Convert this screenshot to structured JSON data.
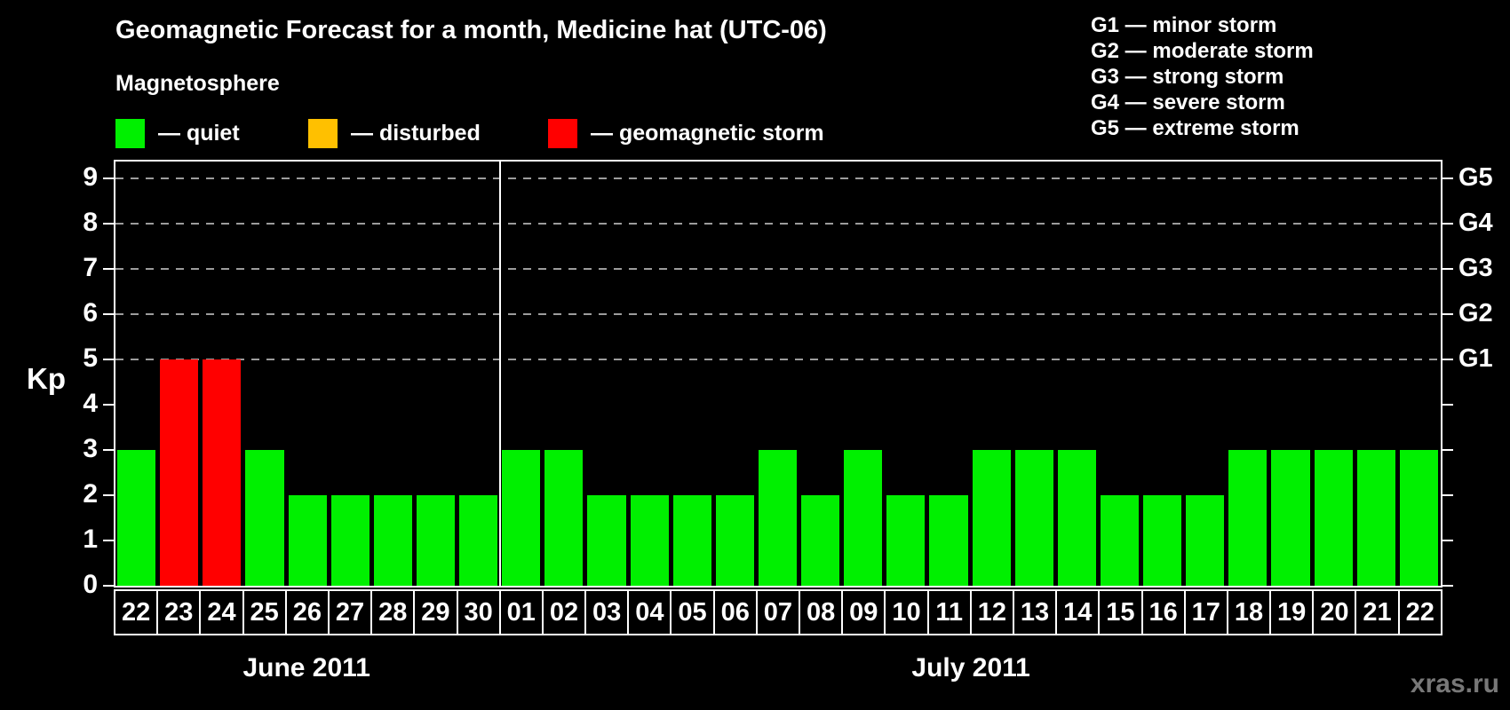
{
  "title": "Geomagnetic Forecast for a month, Medicine hat (UTC-06)",
  "subtitle": "Magnetosphere",
  "magnetosphere_legend": [
    {
      "label": "— quiet",
      "status": "quiet",
      "color": "#00f000"
    },
    {
      "label": "— disturbed",
      "status": "disturbed",
      "color": "#ffc000"
    },
    {
      "label": "— geomagnetic storm",
      "status": "storm",
      "color": "#ff0000"
    }
  ],
  "storm_scale_legend": [
    "G1 — minor storm",
    "G2 — moderate storm",
    "G3 — strong storm",
    "G4 — severe storm",
    "G5 — extreme storm"
  ],
  "watermark": "xras.ru",
  "chart_data": {
    "type": "bar",
    "ylabel": "Kp",
    "ylim": [
      0,
      9
    ],
    "yticks": [
      0,
      1,
      2,
      3,
      4,
      5,
      6,
      7,
      8,
      9
    ],
    "grid": {
      "horizontal_dashed_at_kp": [
        5,
        6,
        7,
        8,
        9
      ]
    },
    "right_axis": {
      "labels": [
        "G1",
        "G2",
        "G3",
        "G4",
        "G5"
      ],
      "at_kp": [
        5,
        6,
        7,
        8,
        9
      ]
    },
    "status_colors": {
      "quiet": "#00f000",
      "disturbed": "#ffc000",
      "storm": "#ff0000"
    },
    "legend_position": "top",
    "groups": [
      {
        "month": "June 2011",
        "categories": [
          "22",
          "23",
          "24",
          "25",
          "26",
          "27",
          "28",
          "29",
          "30"
        ],
        "values": [
          3,
          5,
          5,
          3,
          2,
          2,
          2,
          2,
          2
        ],
        "statuses": [
          "quiet",
          "storm",
          "storm",
          "quiet",
          "quiet",
          "quiet",
          "quiet",
          "quiet",
          "quiet"
        ]
      },
      {
        "month": "July 2011",
        "categories": [
          "01",
          "02",
          "03",
          "04",
          "05",
          "06",
          "07",
          "08",
          "09",
          "10",
          "11",
          "12",
          "13",
          "14",
          "15",
          "16",
          "17",
          "18",
          "19",
          "20",
          "21",
          "22"
        ],
        "values": [
          3,
          3,
          2,
          2,
          2,
          2,
          3,
          2,
          3,
          2,
          2,
          3,
          3,
          3,
          2,
          2,
          2,
          3,
          3,
          3,
          3,
          3
        ],
        "statuses": [
          "quiet",
          "quiet",
          "quiet",
          "quiet",
          "quiet",
          "quiet",
          "quiet",
          "quiet",
          "quiet",
          "quiet",
          "quiet",
          "quiet",
          "quiet",
          "quiet",
          "quiet",
          "quiet",
          "quiet",
          "quiet",
          "quiet",
          "quiet",
          "quiet",
          "quiet"
        ]
      }
    ]
  }
}
